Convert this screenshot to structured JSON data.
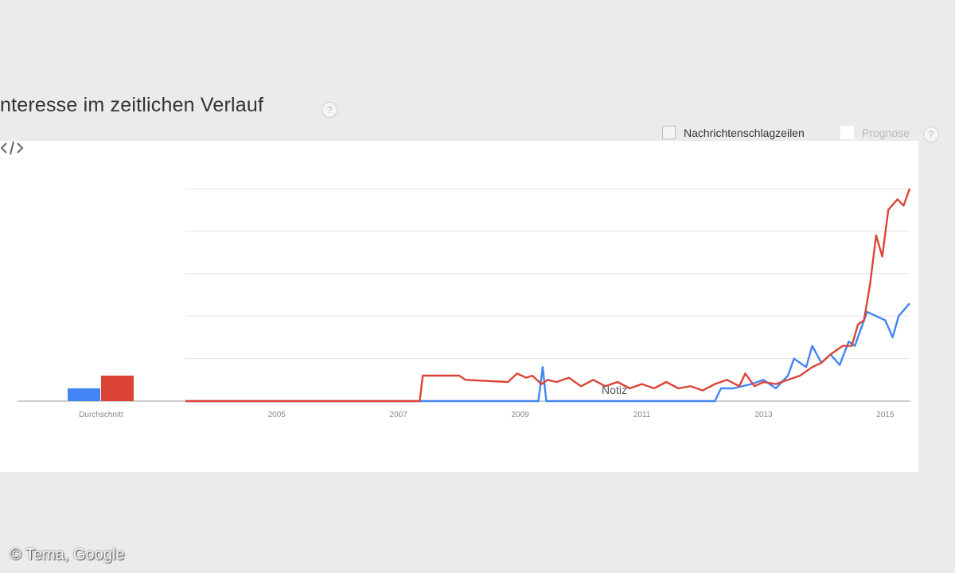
{
  "header": {
    "title": "nteresse im zeitlichen Verlauf",
    "help": "?"
  },
  "options": {
    "news_label": "Nachrichtenschlagzeilen",
    "forecast_label": "Prognose",
    "help": "?"
  },
  "chart_data": {
    "type": "line",
    "title": "",
    "xlabel": "",
    "ylabel": "",
    "x_ticks": [
      "2005",
      "2007",
      "2009",
      "2011",
      "2013",
      "2015"
    ],
    "x_range": [
      2004.0,
      2015.9
    ],
    "ylim": [
      0,
      100
    ],
    "y_grid": [
      20,
      40,
      60,
      80,
      100
    ],
    "grid": true,
    "legend": "none",
    "annotation": "Notiz",
    "average_bars": {
      "label": "Durchschnitt",
      "values": [
        6,
        12
      ]
    },
    "series": [
      {
        "color": "#4285f4",
        "points": [
          [
            2004.0,
            0
          ],
          [
            2009.8,
            0
          ],
          [
            2009.87,
            16
          ],
          [
            2009.93,
            0
          ],
          [
            2012.7,
            0
          ],
          [
            2012.8,
            6
          ],
          [
            2013.0,
            6
          ],
          [
            2013.3,
            8
          ],
          [
            2013.5,
            10
          ],
          [
            2013.7,
            6
          ],
          [
            2013.9,
            12
          ],
          [
            2014.0,
            20
          ],
          [
            2014.2,
            16
          ],
          [
            2014.3,
            26
          ],
          [
            2014.45,
            18
          ],
          [
            2014.6,
            22
          ],
          [
            2014.75,
            17
          ],
          [
            2014.9,
            28
          ],
          [
            2015.0,
            26
          ],
          [
            2015.1,
            34
          ],
          [
            2015.2,
            42
          ],
          [
            2015.35,
            40
          ],
          [
            2015.5,
            38
          ],
          [
            2015.62,
            30
          ],
          [
            2015.72,
            40
          ],
          [
            2015.9,
            46
          ]
        ]
      },
      {
        "color": "#db4437",
        "points": [
          [
            2004.0,
            0
          ],
          [
            2007.85,
            0
          ],
          [
            2007.9,
            12
          ],
          [
            2008.5,
            12
          ],
          [
            2008.6,
            10
          ],
          [
            2009.3,
            9
          ],
          [
            2009.45,
            13
          ],
          [
            2009.6,
            11
          ],
          [
            2009.7,
            12
          ],
          [
            2009.85,
            8
          ],
          [
            2009.95,
            10
          ],
          [
            2010.1,
            9
          ],
          [
            2010.3,
            11
          ],
          [
            2010.5,
            7
          ],
          [
            2010.7,
            10
          ],
          [
            2010.9,
            7
          ],
          [
            2011.1,
            9
          ],
          [
            2011.3,
            6
          ],
          [
            2011.5,
            8
          ],
          [
            2011.7,
            6
          ],
          [
            2011.9,
            9
          ],
          [
            2012.1,
            6
          ],
          [
            2012.3,
            7
          ],
          [
            2012.5,
            5
          ],
          [
            2012.7,
            8
          ],
          [
            2012.9,
            10
          ],
          [
            2013.1,
            7
          ],
          [
            2013.2,
            13
          ],
          [
            2013.35,
            7
          ],
          [
            2013.5,
            9
          ],
          [
            2013.7,
            8
          ],
          [
            2013.9,
            10
          ],
          [
            2014.1,
            12
          ],
          [
            2014.3,
            16
          ],
          [
            2014.45,
            18
          ],
          [
            2014.6,
            22
          ],
          [
            2014.8,
            26
          ],
          [
            2014.95,
            26
          ],
          [
            2015.05,
            36
          ],
          [
            2015.15,
            38
          ],
          [
            2015.25,
            55
          ],
          [
            2015.35,
            78
          ],
          [
            2015.45,
            68
          ],
          [
            2015.55,
            90
          ],
          [
            2015.7,
            95
          ],
          [
            2015.8,
            92
          ],
          [
            2015.9,
            100
          ]
        ]
      }
    ]
  },
  "embed_icon": "embed-code-icon",
  "footer": {
    "copyright": "© Tema, Google"
  }
}
